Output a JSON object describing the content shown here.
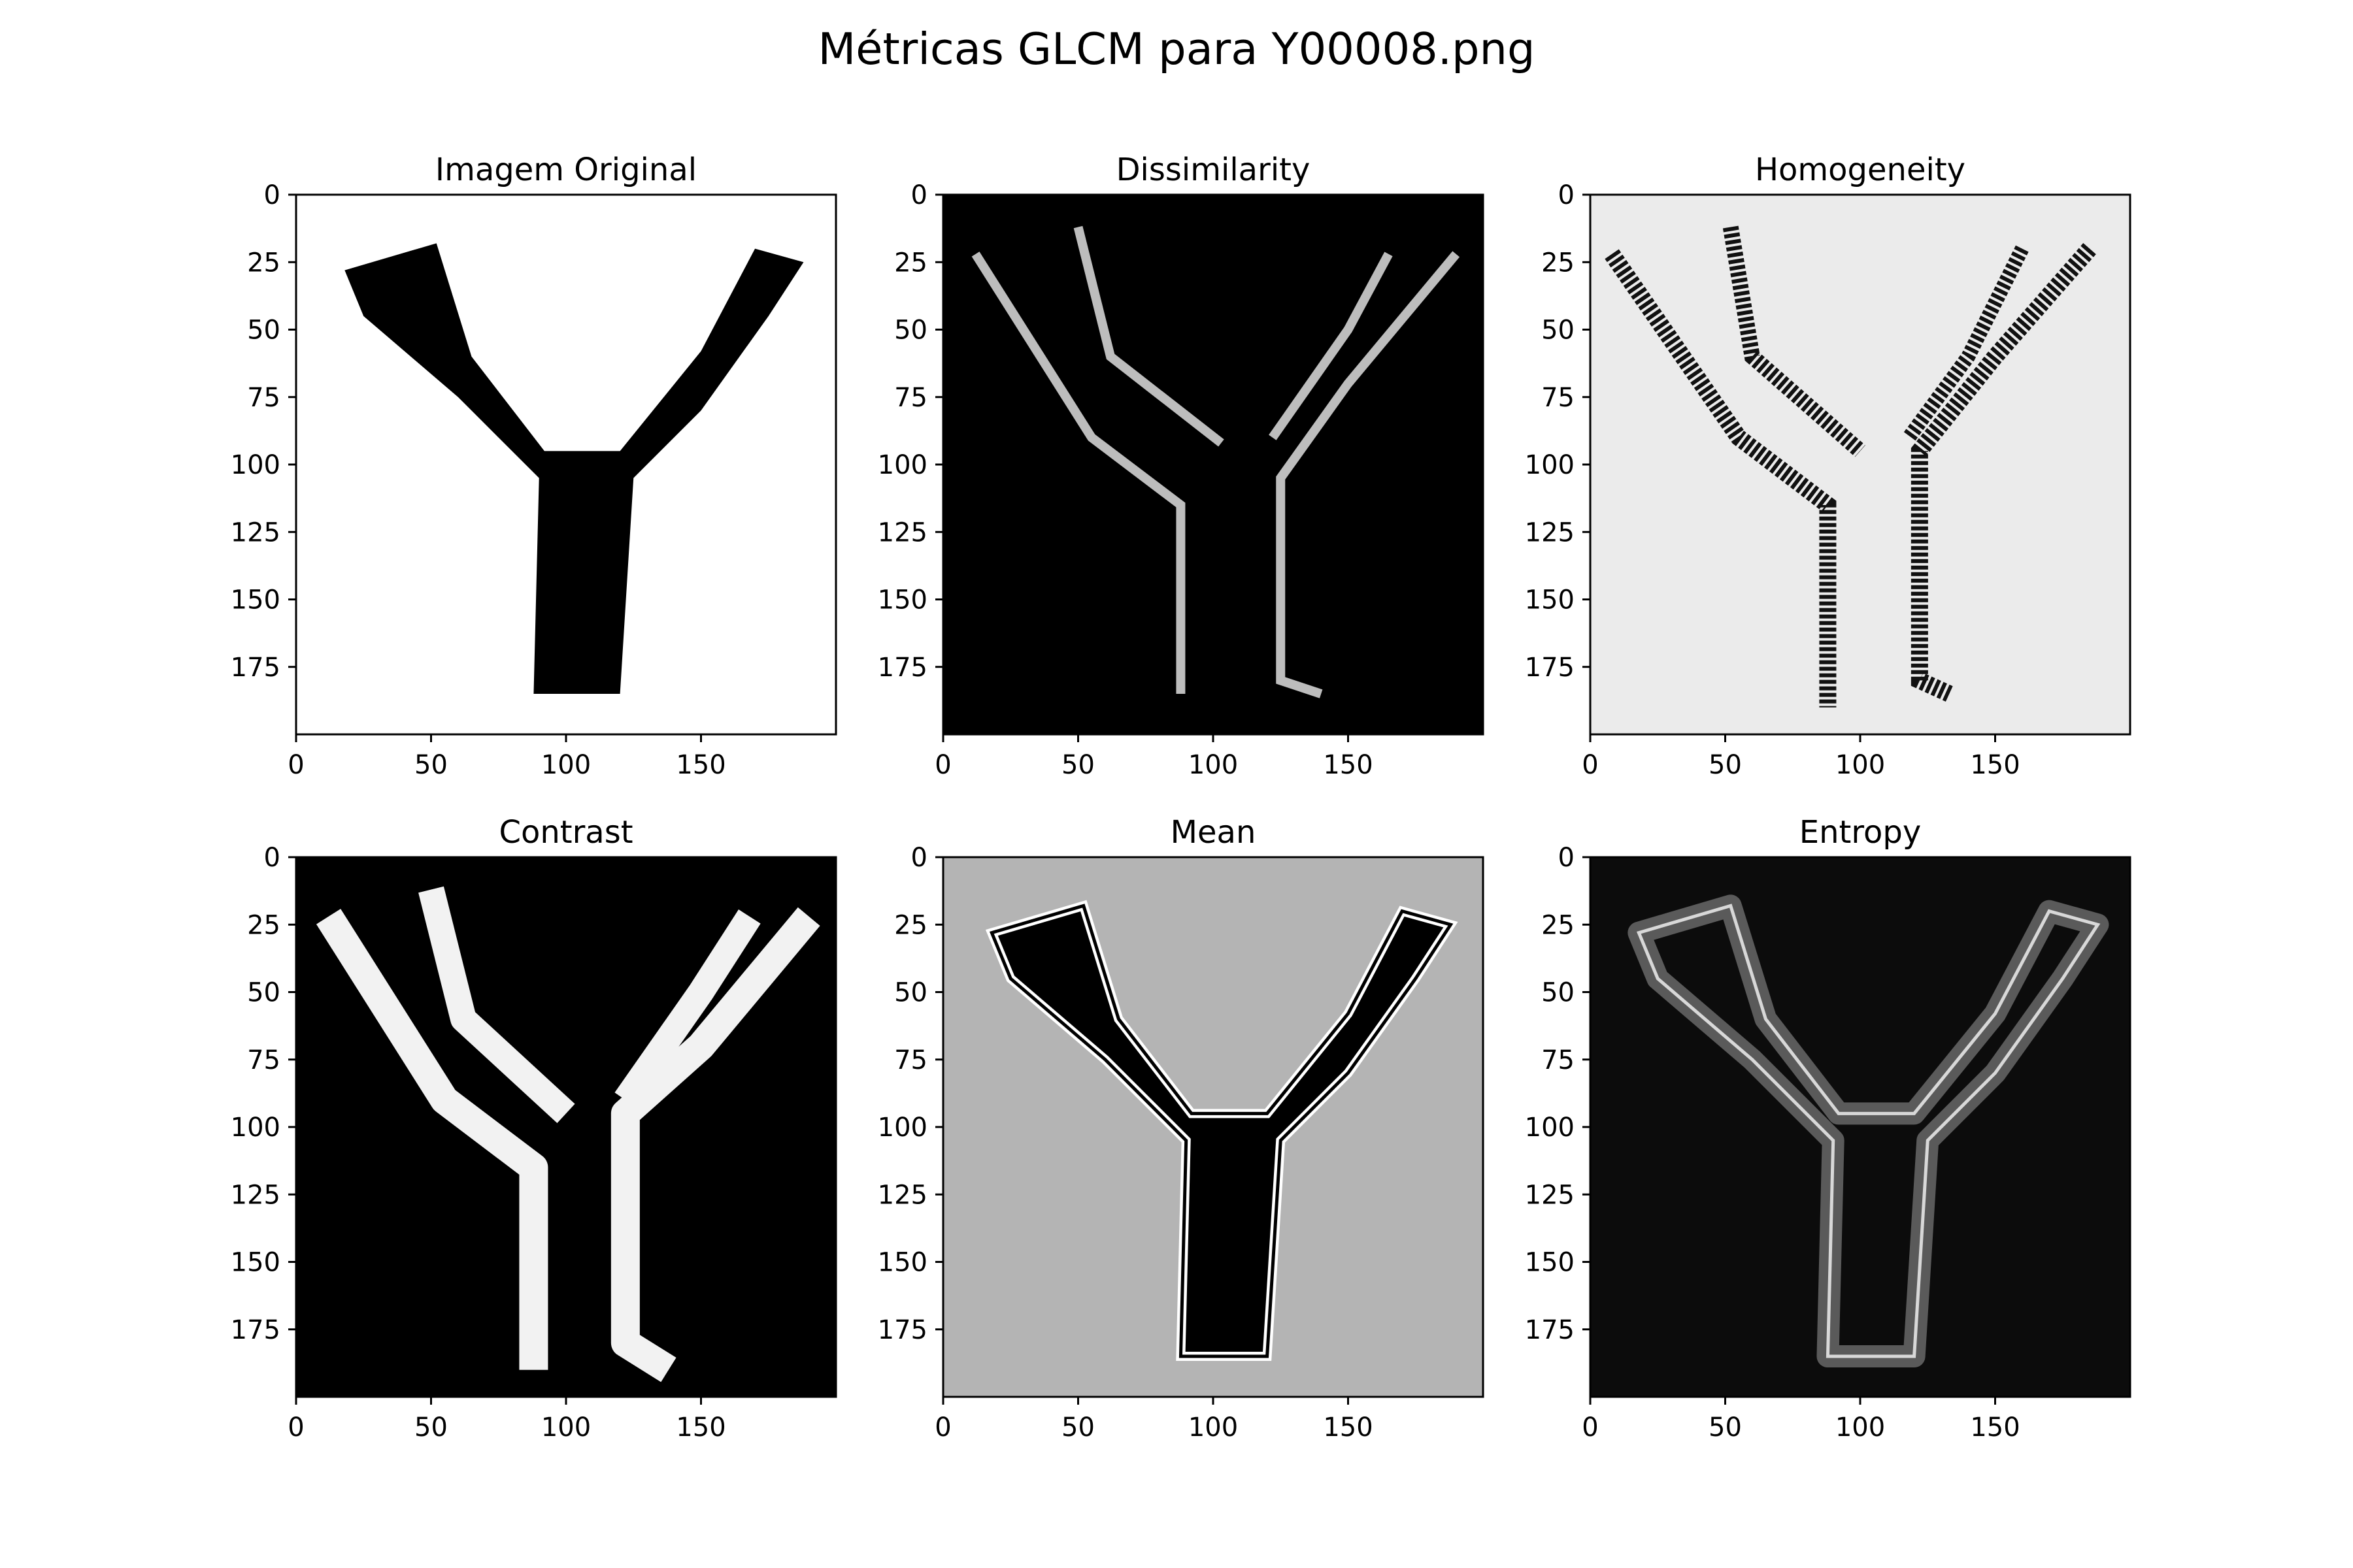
{
  "figure": {
    "title": "Métricas GLCM para Y00008.png"
  },
  "chart_data": [
    {
      "type": "heatmap",
      "title": "Imagem Original",
      "xlim": [
        0,
        200
      ],
      "ylim": [
        200,
        0
      ],
      "x_ticks": [
        "0",
        "50",
        "100",
        "150"
      ],
      "y_ticks": [
        "0",
        "25",
        "50",
        "75",
        "100",
        "125",
        "150",
        "175"
      ],
      "background": "#ffffff"
    },
    {
      "type": "heatmap",
      "title": "Dissimilarity",
      "xlim": [
        0,
        200
      ],
      "ylim": [
        200,
        0
      ],
      "x_ticks": [
        "0",
        "50",
        "100",
        "150"
      ],
      "y_ticks": [
        "0",
        "25",
        "50",
        "75",
        "100",
        "125",
        "150",
        "175"
      ],
      "background": "#000000"
    },
    {
      "type": "heatmap",
      "title": "Homogeneity",
      "xlim": [
        0,
        200
      ],
      "ylim": [
        200,
        0
      ],
      "x_ticks": [
        "0",
        "50",
        "100",
        "150"
      ],
      "y_ticks": [
        "0",
        "25",
        "50",
        "75",
        "100",
        "125",
        "150",
        "175"
      ],
      "background": "#ebebeb"
    },
    {
      "type": "heatmap",
      "title": "Contrast",
      "xlim": [
        0,
        200
      ],
      "ylim": [
        200,
        0
      ],
      "x_ticks": [
        "0",
        "50",
        "100",
        "150"
      ],
      "y_ticks": [
        "0",
        "25",
        "50",
        "75",
        "100",
        "125",
        "150",
        "175"
      ],
      "background": "#000000"
    },
    {
      "type": "heatmap",
      "title": "Mean",
      "xlim": [
        0,
        200
      ],
      "ylim": [
        200,
        0
      ],
      "x_ticks": [
        "0",
        "50",
        "100",
        "150"
      ],
      "y_ticks": [
        "0",
        "25",
        "50",
        "75",
        "100",
        "125",
        "150",
        "175"
      ],
      "background": "#b4b4b4"
    },
    {
      "type": "heatmap",
      "title": "Entropy",
      "xlim": [
        0,
        200
      ],
      "ylim": [
        200,
        0
      ],
      "x_ticks": [
        "0",
        "50",
        "100",
        "150"
      ],
      "y_ticks": [
        "0",
        "25",
        "50",
        "75",
        "100",
        "125",
        "150",
        "175"
      ],
      "background": "#0c0c0c"
    }
  ]
}
